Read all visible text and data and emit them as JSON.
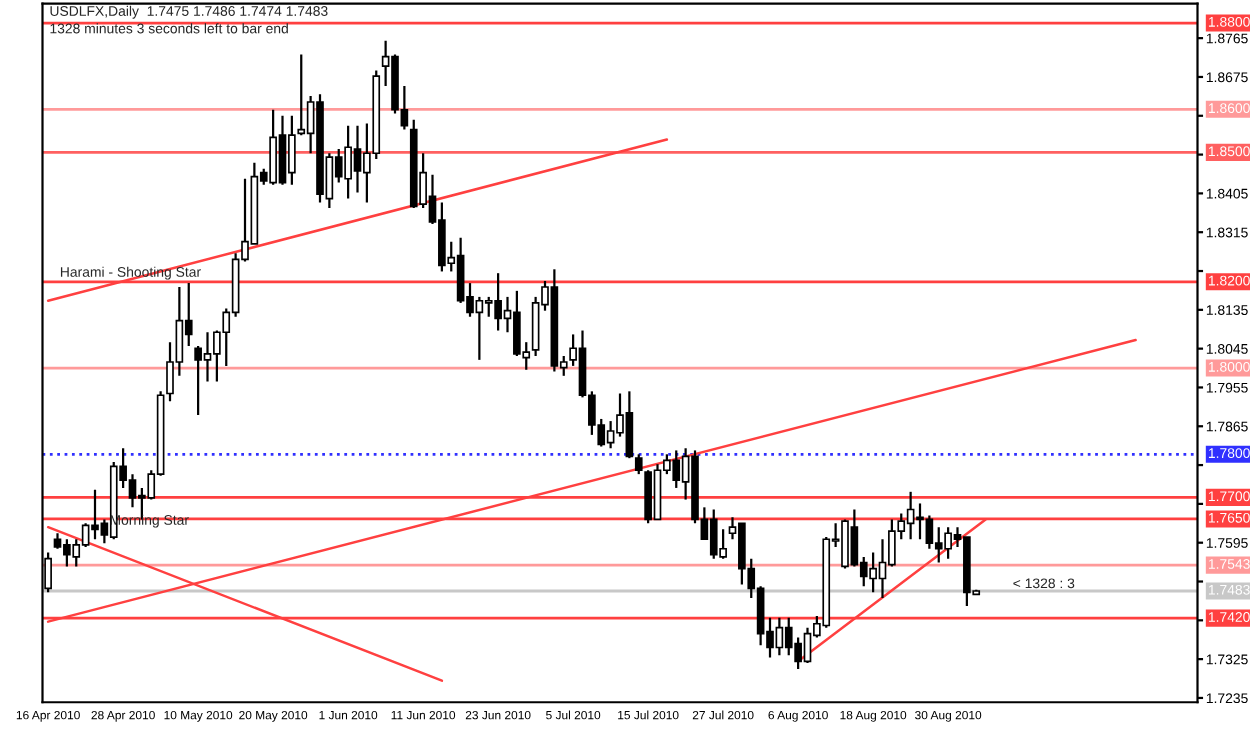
{
  "chart_data": {
    "type": "candlestick",
    "title": "USDLFX,Daily  1.7475 1.7486 1.7474 1.7483",
    "subtitle": "1328 minutes 3 seconds left to bar end",
    "categories": [
      "16 Apr 2010",
      null,
      null,
      null,
      null,
      null,
      null,
      null,
      "28 Apr 2010",
      null,
      null,
      null,
      null,
      null,
      null,
      null,
      "10 May 2010",
      null,
      null,
      null,
      null,
      null,
      null,
      null,
      "20 May 2010",
      null,
      null,
      null,
      null,
      null,
      null,
      null,
      "1 Jun 2010",
      null,
      null,
      null,
      null,
      null,
      null,
      null,
      "11 Jun 2010",
      null,
      null,
      null,
      null,
      null,
      null,
      null,
      "23 Jun 2010",
      null,
      null,
      null,
      null,
      null,
      null,
      null,
      "5 Jul 2010",
      null,
      null,
      null,
      null,
      null,
      null,
      null,
      "15 Jul 2010",
      null,
      null,
      null,
      null,
      null,
      null,
      null,
      "27 Jul 2010",
      null,
      null,
      null,
      null,
      null,
      null,
      null,
      "6 Aug 2010",
      null,
      null,
      null,
      null,
      null,
      null,
      null,
      "18 Aug 2010",
      null,
      null,
      null,
      null,
      null,
      null,
      null,
      "30 Aug 2010",
      null,
      null,
      null,
      null,
      null,
      null,
      null,
      null,
      null,
      null,
      null,
      null,
      null,
      null,
      null,
      null,
      null,
      null,
      null,
      null,
      null,
      null,
      null,
      null,
      null,
      null
    ],
    "ohlc": [
      [
        1.7489,
        1.7572,
        1.748,
        1.7558
      ],
      [
        1.7603,
        1.7617,
        1.7581,
        1.7585
      ],
      [
        1.759,
        1.7603,
        1.754,
        1.7567
      ],
      [
        1.7562,
        1.7603,
        1.754,
        1.759
      ],
      [
        1.759,
        1.764,
        1.7585,
        1.7635
      ],
      [
        1.7635,
        1.7718,
        1.7603,
        1.7626
      ],
      [
        1.764,
        1.7649,
        1.7594,
        1.7613
      ],
      [
        1.7608,
        1.7782,
        1.7603,
        1.7772
      ],
      [
        1.7772,
        1.7814,
        1.7722,
        1.774
      ],
      [
        1.774,
        1.7754,
        1.7677,
        1.7699
      ],
      [
        1.7704,
        1.7722,
        1.7649,
        1.7699
      ],
      [
        1.7699,
        1.7763,
        1.7695,
        1.7754
      ],
      [
        1.7754,
        1.7946,
        1.775,
        1.7937
      ],
      [
        1.7941,
        1.806,
        1.7923,
        1.8014
      ],
      [
        1.8014,
        1.8188,
        1.7982,
        1.811
      ],
      [
        1.811,
        1.8197,
        1.8051,
        1.8078
      ],
      [
        1.8046,
        1.8051,
        1.7891,
        1.8019
      ],
      [
        1.8019,
        1.8083,
        1.7969,
        1.8033
      ],
      [
        1.8033,
        1.8087,
        1.7969,
        1.8083
      ],
      [
        1.8083,
        1.8138,
        1.8005,
        1.8129
      ],
      [
        1.8129,
        1.8266,
        1.8119,
        1.8252
      ],
      [
        1.8252,
        1.8439,
        1.8247,
        1.8293
      ],
      [
        1.8288,
        1.8476,
        1.8288,
        1.8444
      ],
      [
        1.8453,
        1.8462,
        1.8425,
        1.8434
      ],
      [
        1.843,
        1.8599,
        1.8425,
        1.8535
      ],
      [
        1.854,
        1.8585,
        1.8425,
        1.843
      ],
      [
        1.8453,
        1.8585,
        1.8425,
        1.854
      ],
      [
        1.8544,
        1.8727,
        1.854,
        1.8553
      ],
      [
        1.8544,
        1.8631,
        1.8498,
        1.8617
      ],
      [
        1.8617,
        1.8635,
        1.8384,
        1.8403
      ],
      [
        1.8393,
        1.8498,
        1.8371,
        1.8489
      ],
      [
        1.8489,
        1.8508,
        1.843,
        1.8444
      ],
      [
        1.8439,
        1.8562,
        1.8393,
        1.8512
      ],
      [
        1.8508,
        1.8562,
        1.8407,
        1.8457
      ],
      [
        1.8453,
        1.8567,
        1.8384,
        1.8498
      ],
      [
        1.8498,
        1.869,
        1.8485,
        1.8677
      ],
      [
        1.87,
        1.8759,
        1.8654,
        1.8722
      ],
      [
        1.8722,
        1.8727,
        1.859,
        1.8599
      ],
      [
        1.8599,
        1.8654,
        1.8553,
        1.8562
      ],
      [
        1.8553,
        1.8576,
        1.8371,
        1.8375
      ],
      [
        1.838,
        1.8498,
        1.8371,
        1.8453
      ],
      [
        1.8398,
        1.8448,
        1.8334,
        1.8339
      ],
      [
        1.8343,
        1.8384,
        1.8224,
        1.8238
      ],
      [
        1.8243,
        1.8293,
        1.8224,
        1.8256
      ],
      [
        1.8261,
        1.8302,
        1.8151,
        1.8156
      ],
      [
        1.8165,
        1.8197,
        1.8119,
        1.8129
      ],
      [
        1.8129,
        1.8165,
        1.8019,
        1.8156
      ],
      [
        1.8151,
        1.8165,
        1.8119,
        1.8156
      ],
      [
        1.8156,
        1.822,
        1.8087,
        1.8115
      ],
      [
        1.8115,
        1.8165,
        1.8083,
        1.8133
      ],
      [
        1.8129,
        1.8179,
        1.8028,
        1.8033
      ],
      [
        1.8024,
        1.806,
        1.7996,
        1.8037
      ],
      [
        1.8042,
        1.8165,
        1.8028,
        1.8151
      ],
      [
        1.8147,
        1.8202,
        1.8133,
        1.8188
      ],
      [
        1.8188,
        1.8229,
        1.7992,
        1.8005
      ],
      [
        1.8001,
        1.8028,
        1.7982,
        1.8014
      ],
      [
        1.8019,
        1.8078,
        1.8005,
        1.8046
      ],
      [
        1.8046,
        1.8087,
        1.7932,
        1.7937
      ],
      [
        1.7937,
        1.7946,
        1.7845,
        1.7868
      ],
      [
        1.7868,
        1.7882,
        1.7818,
        1.7823
      ],
      [
        1.7827,
        1.7877,
        1.7814,
        1.7854
      ],
      [
        1.785,
        1.7941,
        1.7841,
        1.7891
      ],
      [
        1.7896,
        1.7946,
        1.7791,
        1.7795
      ],
      [
        1.7791,
        1.78,
        1.7754,
        1.7763
      ],
      [
        1.7759,
        1.7763,
        1.764,
        1.7649
      ],
      [
        1.7649,
        1.7777,
        1.7649,
        1.7763
      ],
      [
        1.7763,
        1.78,
        1.7754,
        1.7786
      ],
      [
        1.7786,
        1.7809,
        1.7722,
        1.774
      ],
      [
        1.7736,
        1.7814,
        1.7695,
        1.7795
      ],
      [
        1.7795,
        1.7809,
        1.764,
        1.7649
      ],
      [
        1.7649,
        1.7677,
        1.7603,
        1.7603
      ],
      [
        1.7649,
        1.7672,
        1.7558,
        1.7567
      ],
      [
        1.7562,
        1.7626,
        1.7558,
        1.7581
      ],
      [
        1.7617,
        1.7654,
        1.7603,
        1.7631
      ],
      [
        1.764,
        1.764,
        1.7498,
        1.7535
      ],
      [
        1.7535,
        1.7558,
        1.7467,
        1.7489
      ],
      [
        1.7489,
        1.7494,
        1.7357,
        1.7384
      ],
      [
        1.7389,
        1.7421,
        1.7329,
        1.7352
      ],
      [
        1.7352,
        1.7421,
        1.7334,
        1.7398
      ],
      [
        1.7398,
        1.7421,
        1.7334,
        1.7352
      ],
      [
        1.7361,
        1.7375,
        1.7302,
        1.732
      ],
      [
        1.732,
        1.7398,
        1.7316,
        1.7384
      ],
      [
        1.738,
        1.7425,
        1.7375,
        1.7407
      ],
      [
        1.7403,
        1.7608,
        1.7398,
        1.7603
      ],
      [
        1.7599,
        1.764,
        1.7585,
        1.7603
      ],
      [
        1.754,
        1.7649,
        1.7535,
        1.7645
      ],
      [
        1.7631,
        1.7672,
        1.754,
        1.7544
      ],
      [
        1.7549,
        1.7562,
        1.7494,
        1.7517
      ],
      [
        1.7512,
        1.7572,
        1.748,
        1.7535
      ],
      [
        1.7512,
        1.7603,
        1.7467,
        1.7549
      ],
      [
        1.7544,
        1.7649,
        1.754,
        1.7622
      ],
      [
        1.7622,
        1.7663,
        1.7603,
        1.7645
      ],
      [
        1.764,
        1.7713,
        1.7603,
        1.7672
      ],
      [
        1.7654,
        1.7686,
        1.7603,
        1.7649
      ],
      [
        1.7649,
        1.7658,
        1.7581,
        1.7594
      ],
      [
        1.7594,
        1.7631,
        1.7549,
        1.7581
      ],
      [
        1.7581,
        1.7631,
        1.7558,
        1.7617
      ],
      [
        1.7613,
        1.7631,
        1.7585,
        1.7603
      ],
      [
        1.7608,
        1.7608,
        1.7448,
        1.748
      ],
      [
        1.7475,
        1.7486,
        1.7474,
        1.7483
      ],
      null,
      null,
      null,
      null,
      null,
      null,
      null,
      null,
      null,
      null,
      null,
      null,
      null,
      null,
      null,
      null,
      null,
      null,
      null,
      null,
      null,
      null,
      null
    ],
    "series": [
      {
        "type": "line",
        "color": "#ff4040",
        "values": [
          1.8156,
          null,
          null,
          null,
          null,
          null,
          null,
          null,
          null,
          null,
          null,
          null,
          null,
          null,
          null,
          null,
          null,
          null,
          null,
          null,
          null,
          null,
          null,
          null,
          null,
          null,
          null,
          null,
          null,
          null,
          null,
          null,
          null,
          null,
          null,
          null,
          null,
          null,
          null,
          null,
          null,
          null,
          null,
          null,
          null,
          null,
          null,
          null,
          null,
          null,
          null,
          null,
          null,
          null,
          null,
          null,
          null,
          null,
          null,
          null,
          null,
          null,
          null,
          null,
          null,
          null,
          1.853,
          null,
          null,
          null,
          null,
          null,
          null,
          null,
          null,
          null,
          null,
          null,
          null,
          null,
          null,
          null,
          null,
          null,
          null,
          null,
          null,
          null,
          null,
          null,
          null,
          null,
          null,
          null,
          null,
          null,
          null,
          null,
          null,
          null,
          null,
          null,
          null,
          null,
          null,
          null,
          null,
          null,
          null,
          null,
          null,
          null,
          null,
          null,
          null,
          null,
          null,
          null,
          null,
          null,
          null,
          null,
          null
        ]
      },
      {
        "type": "line",
        "color": "#ff4040",
        "values": [
          1.7412,
          null,
          null,
          null,
          null,
          null,
          null,
          null,
          null,
          null,
          null,
          null,
          null,
          null,
          null,
          null,
          null,
          null,
          null,
          null,
          null,
          null,
          null,
          null,
          null,
          null,
          null,
          null,
          null,
          null,
          null,
          null,
          null,
          null,
          null,
          null,
          null,
          null,
          null,
          null,
          null,
          null,
          null,
          null,
          null,
          null,
          null,
          null,
          null,
          null,
          null,
          null,
          null,
          null,
          null,
          null,
          null,
          null,
          null,
          null,
          null,
          null,
          null,
          null,
          null,
          null,
          null,
          null,
          null,
          null,
          null,
          null,
          null,
          null,
          null,
          null,
          null,
          null,
          null,
          null,
          null,
          null,
          null,
          null,
          null,
          null,
          null,
          null,
          null,
          null,
          null,
          null,
          null,
          null,
          null,
          null,
          null,
          null,
          null,
          null,
          null,
          null,
          null,
          null,
          null,
          null,
          null,
          null,
          null,
          null,
          null,
          null,
          null,
          null,
          null,
          null,
          1.8065,
          null,
          null,
          null,
          null,
          null,
          null
        ]
      },
      {
        "type": "line",
        "color": "#ff4040",
        "values": [
          1.7631,
          null,
          null,
          null,
          null,
          null,
          null,
          null,
          null,
          null,
          null,
          null,
          null,
          null,
          null,
          null,
          null,
          null,
          null,
          null,
          null,
          null,
          null,
          null,
          null,
          null,
          null,
          null,
          null,
          null,
          null,
          null,
          null,
          null,
          null,
          null,
          null,
          null,
          null,
          null,
          null,
          null,
          1.7275,
          null,
          null,
          null,
          null,
          null,
          null,
          null,
          null,
          null,
          null,
          null,
          null,
          null,
          null,
          null,
          null,
          null,
          null,
          null,
          null,
          null,
          null,
          null,
          null,
          null,
          null,
          null,
          null,
          null,
          null,
          null,
          null,
          null,
          null,
          null,
          null,
          null,
          null,
          null,
          null,
          null,
          null,
          null,
          null,
          null,
          null,
          null,
          null,
          null,
          null,
          null,
          null,
          null,
          null,
          null,
          null,
          null,
          null,
          null,
          null,
          null,
          null,
          null,
          null,
          null,
          null,
          null,
          null,
          null,
          null,
          null,
          null,
          null,
          null,
          null,
          null,
          null,
          null,
          null,
          null
        ]
      },
      {
        "type": "line",
        "color": "#ff4040",
        "values": [
          null,
          null,
          null,
          null,
          null,
          null,
          null,
          null,
          null,
          null,
          null,
          null,
          null,
          null,
          null,
          null,
          null,
          null,
          null,
          null,
          null,
          null,
          null,
          null,
          null,
          null,
          null,
          null,
          null,
          null,
          null,
          null,
          null,
          null,
          null,
          null,
          null,
          null,
          null,
          null,
          null,
          null,
          null,
          null,
          null,
          null,
          null,
          null,
          null,
          null,
          null,
          null,
          null,
          null,
          null,
          null,
          null,
          null,
          null,
          null,
          null,
          null,
          null,
          null,
          null,
          null,
          null,
          null,
          null,
          null,
          null,
          null,
          null,
          null,
          null,
          null,
          null,
          null,
          null,
          null,
          1.732,
          null,
          null,
          null,
          null,
          null,
          null,
          null,
          null,
          null,
          null,
          null,
          null,
          null,
          null,
          null,
          null,
          null,
          null,
          null,
          1.7649,
          null,
          null,
          null,
          null,
          null,
          null,
          null,
          null,
          null,
          null,
          null,
          null,
          null,
          null,
          null,
          null,
          null,
          null,
          null,
          null,
          null,
          null
        ]
      }
    ],
    "ylim": [
      1.7225,
      1.8845
    ],
    "yticks": [
      1.7235,
      1.7325,
      {
        "value": 1.7415,
        "label": null
      },
      {
        "value": 1.7505,
        "label": null
      },
      1.7595,
      {
        "value": 1.7685,
        "label": null
      },
      {
        "value": 1.7775,
        "label": null
      },
      1.7865,
      1.7955,
      1.8045,
      1.8135,
      {
        "value": 1.8225,
        "label": null
      },
      1.8315,
      1.8405,
      {
        "value": 1.8495,
        "label": null
      },
      {
        "value": 1.8585,
        "label": null
      },
      1.8675,
      1.8765
    ],
    "ref_lines": [
      {
        "axis": "y",
        "value": 1.88,
        "label": "1.8800",
        "color": "#ff4040"
      },
      {
        "axis": "y",
        "value": 1.86,
        "label": "1.8600",
        "color": "#ff9a9a"
      },
      {
        "axis": "y",
        "value": 1.85,
        "label": "1.8500",
        "color": "#ff6060"
      },
      {
        "axis": "y",
        "value": 1.82,
        "label": "1.8200",
        "color": "#ff4040"
      },
      {
        "axis": "y",
        "value": 1.8,
        "label": "1.8000",
        "color": "#ff9a9a"
      },
      {
        "axis": "y",
        "value": 1.78,
        "label": "1.7800",
        "color": "#3030ff",
        "line_style": "dotted"
      },
      {
        "axis": "y",
        "value": 1.77,
        "label": "1.7700",
        "color": "#ff4040"
      },
      {
        "axis": "y",
        "value": 1.765,
        "label": "1.7650",
        "color": "#ff4040"
      },
      {
        "axis": "y",
        "value": 1.7543,
        "label": "1.7543",
        "color": "#ff9a9a"
      },
      {
        "axis": "y",
        "value": 1.7483,
        "label": "1.7483",
        "color": "#c8c8c8"
      },
      {
        "axis": "y",
        "value": 1.742,
        "label": "1.7420",
        "color": "#ff4040"
      }
    ],
    "annotations": [
      "Harami - Shooting Star",
      {
        "text": "Morning Star",
        "y": 1.763
      },
      {
        "text": "< 1328 : 3",
        "y": 1.7483
      }
    ],
    "grid": false,
    "legend": false
  }
}
